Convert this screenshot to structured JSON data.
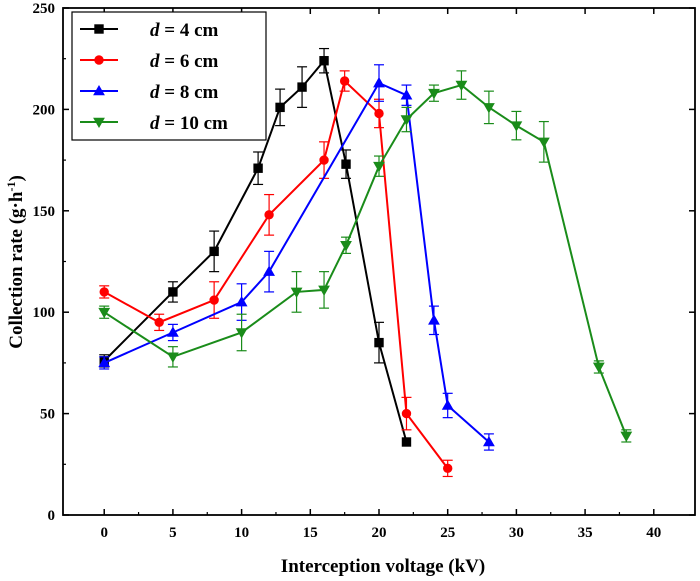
{
  "chart_data": {
    "type": "line",
    "xlabel": "Interception voltage (kV)",
    "ylabel": "Collection rate (g·h⁻¹)",
    "ylabel_main": "Collection rate (g·h",
    "ylabel_sup": "-1",
    "ylabel_close": ")",
    "xlim": [
      -3,
      43
    ],
    "ylim": [
      0,
      250
    ],
    "xticks": [
      0,
      5,
      10,
      15,
      20,
      25,
      30,
      35,
      40
    ],
    "yticks": [
      0,
      50,
      100,
      150,
      200,
      250
    ],
    "grid": false,
    "legend_position": "top-left",
    "series": [
      {
        "name": "d = 4 cm",
        "legend_var": "d",
        "legend_rest": " = 4 cm",
        "color": "#000000",
        "marker": "square",
        "points": [
          {
            "x": 0,
            "y": 76,
            "err": 3
          },
          {
            "x": 5,
            "y": 110,
            "err": 5
          },
          {
            "x": 8,
            "y": 130,
            "err": 10
          },
          {
            "x": 11.2,
            "y": 171,
            "err": 8
          },
          {
            "x": 12.8,
            "y": 201,
            "err": 9
          },
          {
            "x": 14.4,
            "y": 211,
            "err": 10
          },
          {
            "x": 16,
            "y": 224,
            "err": 6
          },
          {
            "x": 17.6,
            "y": 173,
            "err": 7
          },
          {
            "x": 20,
            "y": 85,
            "err": 10
          },
          {
            "x": 22,
            "y": 36,
            "err": 0
          }
        ]
      },
      {
        "name": "d = 6 cm",
        "legend_var": "d",
        "legend_rest": " = 6 cm",
        "color": "#ff0000",
        "marker": "circle",
        "points": [
          {
            "x": 0,
            "y": 110,
            "err": 3
          },
          {
            "x": 4,
            "y": 95,
            "err": 4
          },
          {
            "x": 8,
            "y": 106,
            "err": 9
          },
          {
            "x": 12,
            "y": 148,
            "err": 10
          },
          {
            "x": 16,
            "y": 175,
            "err": 9
          },
          {
            "x": 17.5,
            "y": 214,
            "err": 5
          },
          {
            "x": 20,
            "y": 198,
            "err": 7
          },
          {
            "x": 22,
            "y": 50,
            "err": 8
          },
          {
            "x": 25,
            "y": 23,
            "err": 4
          }
        ]
      },
      {
        "name": "d = 8 cm",
        "legend_var": "d",
        "legend_rest": " = 8 cm",
        "color": "#0000ff",
        "marker": "triangle-up",
        "points": [
          {
            "x": 0,
            "y": 75,
            "err": 3
          },
          {
            "x": 5,
            "y": 90,
            "err": 4
          },
          {
            "x": 10,
            "y": 105,
            "err": 9
          },
          {
            "x": 12,
            "y": 120,
            "err": 10
          },
          {
            "x": 20,
            "y": 213,
            "err": 9
          },
          {
            "x": 22,
            "y": 207,
            "err": 5
          },
          {
            "x": 24,
            "y": 96,
            "err": 7
          },
          {
            "x": 25,
            "y": 54,
            "err": 6
          },
          {
            "x": 28,
            "y": 36,
            "err": 4
          }
        ]
      },
      {
        "name": "d = 10 cm",
        "legend_var": "d",
        "legend_rest": " = 10 cm",
        "color": "#1a8c1a",
        "marker": "triangle-down",
        "points": [
          {
            "x": 0,
            "y": 100,
            "err": 3
          },
          {
            "x": 5,
            "y": 78,
            "err": 5
          },
          {
            "x": 10,
            "y": 90,
            "err": 9
          },
          {
            "x": 14,
            "y": 110,
            "err": 10
          },
          {
            "x": 16,
            "y": 111,
            "err": 9
          },
          {
            "x": 17.6,
            "y": 133,
            "err": 4
          },
          {
            "x": 20,
            "y": 172,
            "err": 5
          },
          {
            "x": 22,
            "y": 195,
            "err": 6
          },
          {
            "x": 24,
            "y": 208,
            "err": 4
          },
          {
            "x": 26,
            "y": 212,
            "err": 7
          },
          {
            "x": 28,
            "y": 201,
            "err": 8
          },
          {
            "x": 30,
            "y": 192,
            "err": 7
          },
          {
            "x": 32,
            "y": 184,
            "err": 10
          },
          {
            "x": 36,
            "y": 73,
            "err": 3
          },
          {
            "x": 38,
            "y": 39,
            "err": 3
          }
        ]
      }
    ]
  }
}
